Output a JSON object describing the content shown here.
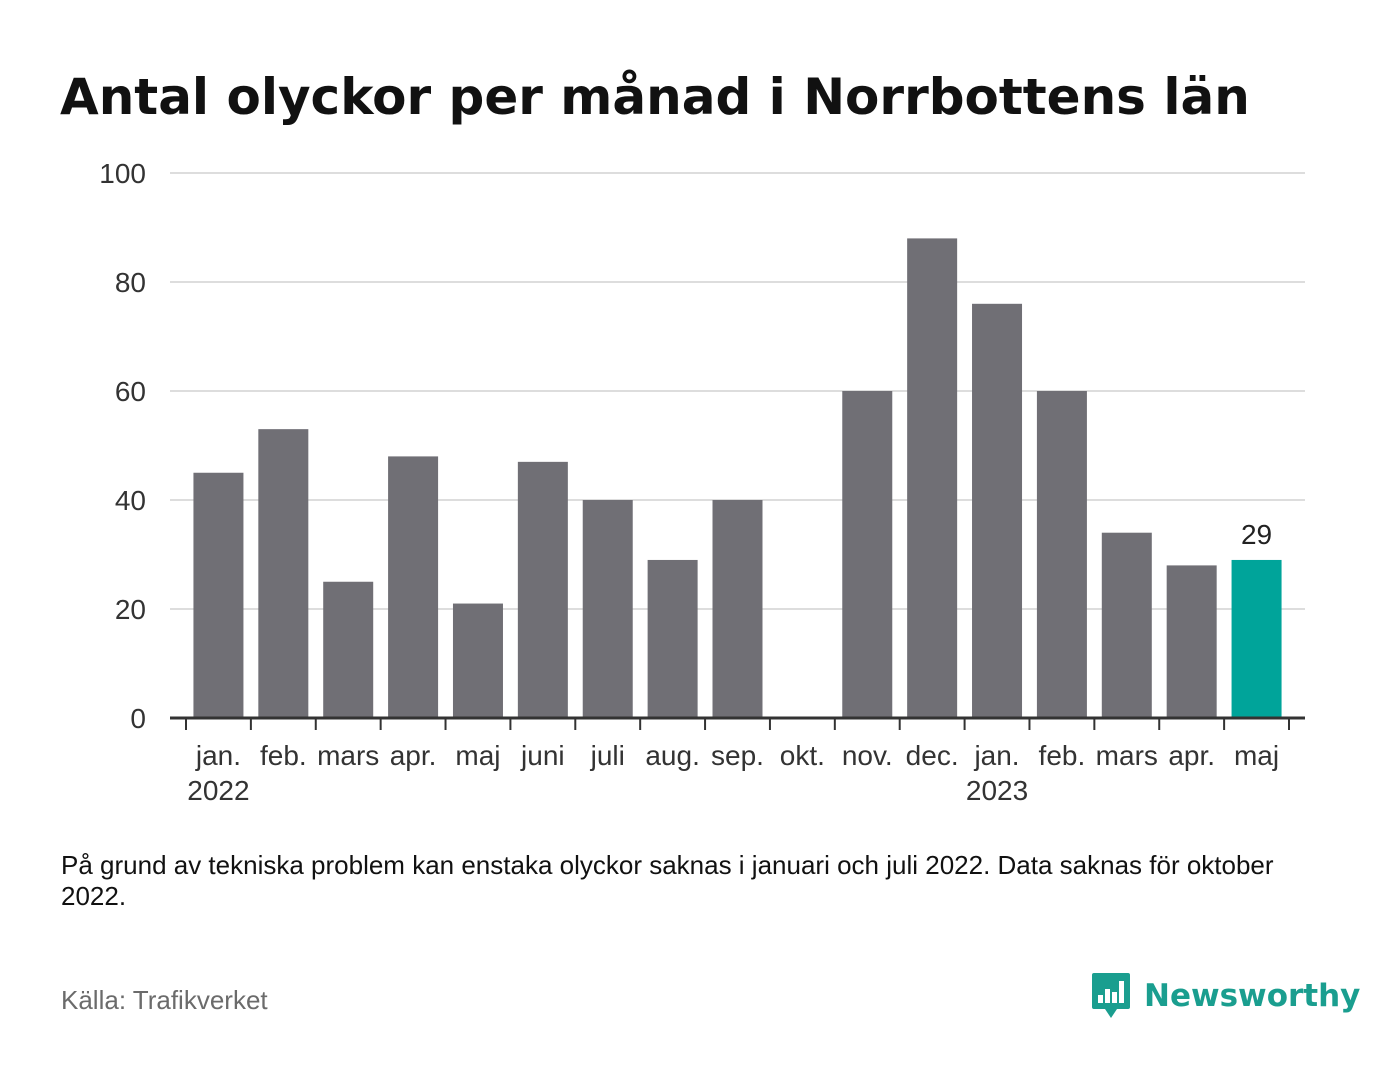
{
  "title": "Antal olyckor per månad i Norrbottens län",
  "note": "På grund av tekniska problem kan enstaka olyckor saknas i januari och juli 2022. Data saknas för oktober 2022.",
  "source": "Källa: Trafikverket",
  "brand": "Newsworthy",
  "colors": {
    "bar": "#706f75",
    "highlight": "#00a49a",
    "grid": "#dddddd",
    "axis": "#333333"
  },
  "chart_data": {
    "type": "bar",
    "categories": [
      "jan.",
      "feb.",
      "mars",
      "apr.",
      "maj",
      "juni",
      "juli",
      "aug.",
      "sep.",
      "okt.",
      "nov.",
      "dec.",
      "jan.",
      "feb.",
      "mars",
      "apr.",
      "maj"
    ],
    "year_labels": [
      {
        "index": 0,
        "label": "2022"
      },
      {
        "index": 12,
        "label": "2023"
      }
    ],
    "values": [
      45,
      53,
      25,
      48,
      21,
      47,
      40,
      29,
      40,
      null,
      60,
      88,
      76,
      60,
      34,
      28,
      29
    ],
    "highlight_index": 16,
    "data_labels": [
      {
        "index": 16,
        "label": "29"
      }
    ],
    "yticks": [
      0,
      20,
      40,
      60,
      80,
      100
    ],
    "ylim": [
      0,
      100
    ],
    "grid": true
  }
}
